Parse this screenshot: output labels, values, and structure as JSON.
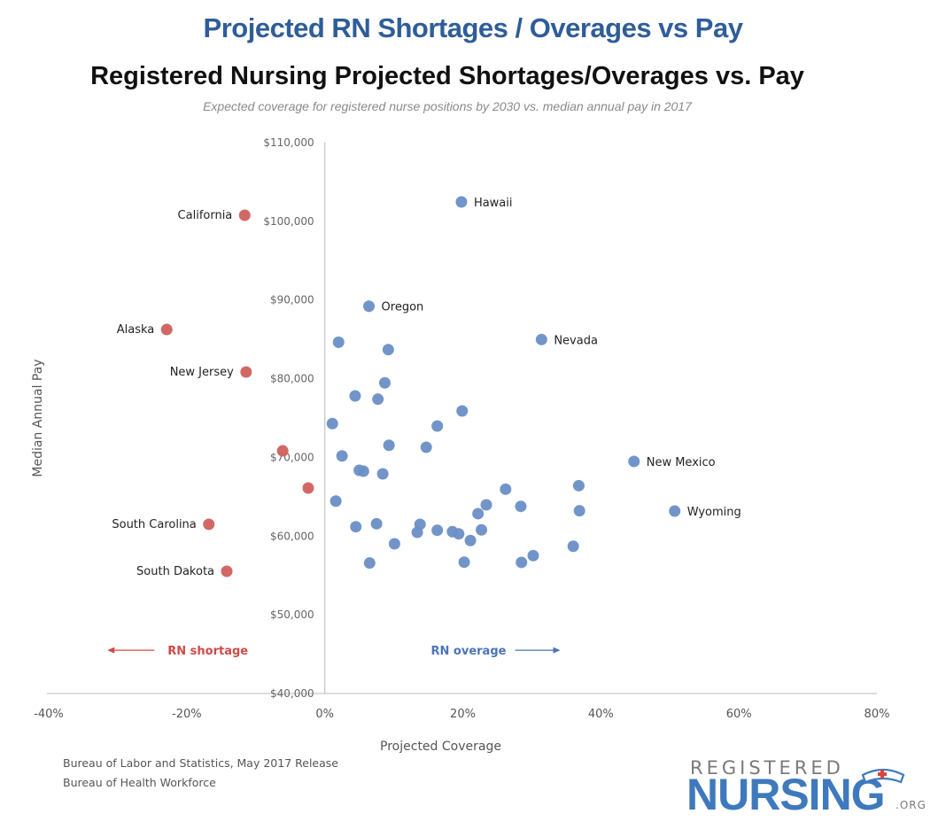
{
  "header": {
    "title": "Projected RN Shortages / Overages vs Pay"
  },
  "chart_data": {
    "type": "scatter",
    "title": "Registered Nursing Projected Shortages/Overages vs. Pay",
    "subtitle": "Expected coverage for registered nurse positions by 2030 vs. median annual pay in 2017",
    "xlabel": "Projected Coverage",
    "ylabel": "Median Annual Pay",
    "xlim": [
      -40,
      80
    ],
    "ylim": [
      40000,
      110000
    ],
    "x_ticks": [
      -40,
      -20,
      0,
      20,
      40,
      60,
      80
    ],
    "x_tick_labels": [
      "-40%",
      "-20%",
      "0%",
      "20%",
      "40%",
      "60%",
      "80%"
    ],
    "y_ticks": [
      40000,
      50000,
      60000,
      70000,
      80000,
      90000,
      100000,
      110000
    ],
    "y_tick_labels": [
      "$40,000",
      "$50,000",
      "$60,000",
      "$70,000",
      "$80,000",
      "$90,000",
      "$100,000",
      "$110,000"
    ],
    "grid": false,
    "colors": {
      "shortage": "#d0605e",
      "overage": "#6a8fc6"
    },
    "annotations": [
      {
        "text": "RN shortage",
        "direction": "left",
        "color": "#d04a47",
        "x": -22,
        "y": 45500
      },
      {
        "text": "RN overage",
        "direction": "right",
        "color": "#4d74b8",
        "x": 20,
        "y": 45500
      }
    ],
    "series": [
      {
        "name": "RN shortage",
        "color": "#d0605e",
        "points": [
          {
            "x": -11.6,
            "y": 100770,
            "label": "California"
          },
          {
            "x": -22.9,
            "y": 86250,
            "label": "Alaska"
          },
          {
            "x": -11.4,
            "y": 80850,
            "label": "New Jersey"
          },
          {
            "x": -6.1,
            "y": 70830,
            "label": ""
          },
          {
            "x": -2.4,
            "y": 66110,
            "label": ""
          },
          {
            "x": -16.8,
            "y": 61500,
            "label": "South Carolina"
          },
          {
            "x": -14.2,
            "y": 55530,
            "label": "South Dakota"
          }
        ]
      },
      {
        "name": "RN overage",
        "color": "#6a8fc6",
        "points": [
          {
            "x": 19.8,
            "y": 102460,
            "label": "Hawaii"
          },
          {
            "x": 6.4,
            "y": 89210,
            "label": "Oregon"
          },
          {
            "x": 31.4,
            "y": 84980,
            "label": "Nevada"
          },
          {
            "x": 44.8,
            "y": 69490,
            "label": "New Mexico"
          },
          {
            "x": 50.7,
            "y": 63180,
            "label": "Wyoming"
          },
          {
            "x": 2.0,
            "y": 84640,
            "label": ""
          },
          {
            "x": 9.2,
            "y": 83700,
            "label": ""
          },
          {
            "x": 8.7,
            "y": 79470,
            "label": ""
          },
          {
            "x": 4.4,
            "y": 77810,
            "label": ""
          },
          {
            "x": 7.7,
            "y": 77400,
            "label": ""
          },
          {
            "x": 19.9,
            "y": 75900,
            "label": ""
          },
          {
            "x": 1.1,
            "y": 74290,
            "label": ""
          },
          {
            "x": 16.3,
            "y": 73990,
            "label": ""
          },
          {
            "x": 9.3,
            "y": 71540,
            "label": ""
          },
          {
            "x": 14.7,
            "y": 71290,
            "label": ""
          },
          {
            "x": 2.5,
            "y": 70190,
            "label": ""
          },
          {
            "x": 5.0,
            "y": 68360,
            "label": ""
          },
          {
            "x": 5.6,
            "y": 68250,
            "label": ""
          },
          {
            "x": 8.4,
            "y": 67910,
            "label": ""
          },
          {
            "x": 1.6,
            "y": 64450,
            "label": ""
          },
          {
            "x": 4.5,
            "y": 61190,
            "label": ""
          },
          {
            "x": 7.5,
            "y": 61570,
            "label": ""
          },
          {
            "x": 13.8,
            "y": 61500,
            "label": ""
          },
          {
            "x": 13.4,
            "y": 60480,
            "label": ""
          },
          {
            "x": 16.3,
            "y": 60740,
            "label": ""
          },
          {
            "x": 18.5,
            "y": 60560,
            "label": ""
          },
          {
            "x": 19.4,
            "y": 60290,
            "label": ""
          },
          {
            "x": 21.1,
            "y": 59440,
            "label": ""
          },
          {
            "x": 22.7,
            "y": 60790,
            "label": ""
          },
          {
            "x": 22.2,
            "y": 62850,
            "label": ""
          },
          {
            "x": 23.4,
            "y": 63970,
            "label": ""
          },
          {
            "x": 26.2,
            "y": 65960,
            "label": ""
          },
          {
            "x": 28.4,
            "y": 63780,
            "label": ""
          },
          {
            "x": 36.8,
            "y": 66410,
            "label": ""
          },
          {
            "x": 36.9,
            "y": 63220,
            "label": ""
          },
          {
            "x": 36.0,
            "y": 58710,
            "label": ""
          },
          {
            "x": 30.2,
            "y": 57520,
            "label": ""
          },
          {
            "x": 28.5,
            "y": 56660,
            "label": ""
          },
          {
            "x": 10.1,
            "y": 59020,
            "label": ""
          },
          {
            "x": 6.5,
            "y": 56580,
            "label": ""
          },
          {
            "x": 20.2,
            "y": 56690,
            "label": ""
          }
        ]
      }
    ]
  },
  "footer": {
    "sources": [
      "Bureau of Labor and Statistics, May 2017 Release",
      "Bureau of Health Workforce"
    ],
    "logo": {
      "top": "REGISTERED",
      "main": "NURSING",
      "suffix": ".ORG"
    }
  }
}
